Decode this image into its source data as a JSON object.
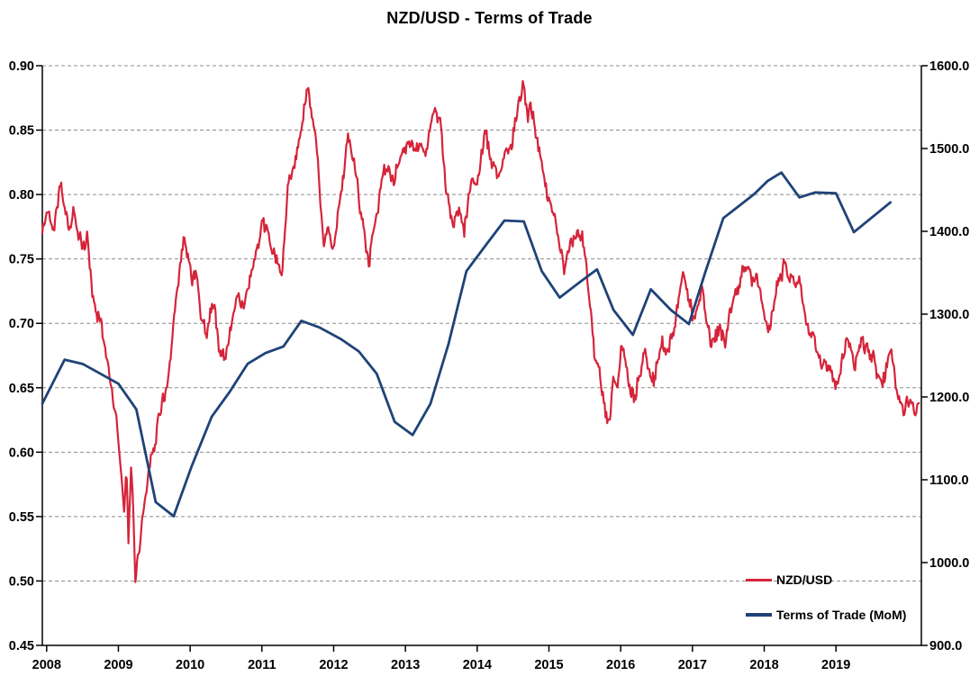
{
  "chart_data": {
    "type": "line",
    "title": "NZD/USD - Terms of Trade",
    "x_axis": {
      "min": 2007.94,
      "max": 2020.19,
      "tick_values": [
        2008,
        2009,
        2010,
        2011,
        2012,
        2013,
        2014,
        2015,
        2016,
        2017,
        2018,
        2019
      ],
      "tick_labels": [
        "2008",
        "2009",
        "2010",
        "2011",
        "2012",
        "2013",
        "2014",
        "2015",
        "2016",
        "2017",
        "2018",
        "2019"
      ]
    },
    "y_left": {
      "min": 0.45,
      "max": 0.9,
      "tick_values": [
        0.9,
        0.85,
        0.8,
        0.75,
        0.7,
        0.65,
        0.6,
        0.55,
        0.5,
        0.45
      ],
      "tick_labels": [
        "0.90",
        "0.85",
        "0.80",
        "0.75",
        "0.70",
        "0.65",
        "0.60",
        "0.55",
        "0.50",
        "0.45"
      ],
      "gridline_values": [
        0.9,
        0.85,
        0.8,
        0.75,
        0.7,
        0.65,
        0.6,
        0.55,
        0.5
      ]
    },
    "y_right": {
      "min": 900,
      "max": 1600,
      "tick_values": [
        1600,
        1500,
        1400,
        1300,
        1200,
        1100,
        1000,
        900
      ],
      "tick_labels": [
        "1600.0",
        "1500.0",
        "1400.0",
        "1300.0",
        "1200.0",
        "1100.0",
        "1000.0",
        "900.0"
      ]
    },
    "grid": {
      "style": "dashed",
      "color": "#8c8c8c"
    },
    "axis_color": "#000000",
    "legend": [
      {
        "label": "NZD/USD",
        "color": "#D5243A"
      },
      {
        "label": "Terms of Trade (MoM)",
        "color": "#1F4377"
      }
    ],
    "series": [
      {
        "name": "NZD/USD",
        "axis": "left",
        "color": "#D5243A",
        "line_width": 2.2,
        "render": "noisy",
        "points": [
          [
            2007.94,
            0.77
          ],
          [
            2008.02,
            0.788
          ],
          [
            2008.1,
            0.775
          ],
          [
            2008.19,
            0.818
          ],
          [
            2008.27,
            0.788
          ],
          [
            2008.32,
            0.77
          ],
          [
            2008.37,
            0.786
          ],
          [
            2008.45,
            0.768
          ],
          [
            2008.52,
            0.756
          ],
          [
            2008.57,
            0.764
          ],
          [
            2008.63,
            0.727
          ],
          [
            2008.7,
            0.704
          ],
          [
            2008.74,
            0.708
          ],
          [
            2008.8,
            0.69
          ],
          [
            2008.86,
            0.667
          ],
          [
            2008.91,
            0.652
          ],
          [
            2008.96,
            0.636
          ],
          [
            2009.01,
            0.6
          ],
          [
            2009.05,
            0.578
          ],
          [
            2009.08,
            0.545
          ],
          [
            2009.11,
            0.589
          ],
          [
            2009.14,
            0.522
          ],
          [
            2009.18,
            0.585
          ],
          [
            2009.24,
            0.497
          ],
          [
            2009.3,
            0.532
          ],
          [
            2009.37,
            0.566
          ],
          [
            2009.45,
            0.6
          ],
          [
            2009.53,
            0.622
          ],
          [
            2009.61,
            0.645
          ],
          [
            2009.7,
            0.657
          ],
          [
            2009.78,
            0.7
          ],
          [
            2009.86,
            0.742
          ],
          [
            2009.91,
            0.764
          ],
          [
            2009.97,
            0.748
          ],
          [
            2010.03,
            0.735
          ],
          [
            2010.08,
            0.745
          ],
          [
            2010.16,
            0.706
          ],
          [
            2010.24,
            0.7
          ],
          [
            2010.32,
            0.716
          ],
          [
            2010.41,
            0.68
          ],
          [
            2010.49,
            0.668
          ],
          [
            2010.57,
            0.696
          ],
          [
            2010.66,
            0.726
          ],
          [
            2010.74,
            0.706
          ],
          [
            2010.82,
            0.736
          ],
          [
            2010.91,
            0.756
          ],
          [
            2010.99,
            0.776
          ],
          [
            2011.07,
            0.766
          ],
          [
            2011.16,
            0.754
          ],
          [
            2011.28,
            0.733
          ],
          [
            2011.36,
            0.796
          ],
          [
            2011.45,
            0.822
          ],
          [
            2011.53,
            0.846
          ],
          [
            2011.64,
            0.879
          ],
          [
            2011.7,
            0.85
          ],
          [
            2011.77,
            0.822
          ],
          [
            2011.86,
            0.752
          ],
          [
            2011.93,
            0.78
          ],
          [
            2011.99,
            0.76
          ],
          [
            2012.11,
            0.8
          ],
          [
            2012.2,
            0.84
          ],
          [
            2012.28,
            0.824
          ],
          [
            2012.41,
            0.782
          ],
          [
            2012.49,
            0.75
          ],
          [
            2012.57,
            0.789
          ],
          [
            2012.7,
            0.817
          ],
          [
            2012.78,
            0.824
          ],
          [
            2012.86,
            0.813
          ],
          [
            2013.03,
            0.846
          ],
          [
            2013.16,
            0.834
          ],
          [
            2013.28,
            0.839
          ],
          [
            2013.41,
            0.864
          ],
          [
            2013.49,
            0.851
          ],
          [
            2013.57,
            0.806
          ],
          [
            2013.66,
            0.77
          ],
          [
            2013.74,
            0.781
          ],
          [
            2013.82,
            0.768
          ],
          [
            2013.91,
            0.808
          ],
          [
            2014.01,
            0.811
          ],
          [
            2014.11,
            0.849
          ],
          [
            2014.2,
            0.823
          ],
          [
            2014.3,
            0.809
          ],
          [
            2014.41,
            0.823
          ],
          [
            2014.53,
            0.858
          ],
          [
            2014.64,
            0.883
          ],
          [
            2014.7,
            0.859
          ],
          [
            2014.74,
            0.876
          ],
          [
            2014.84,
            0.843
          ],
          [
            2014.93,
            0.815
          ],
          [
            2015.01,
            0.796
          ],
          [
            2015.1,
            0.781
          ],
          [
            2015.21,
            0.747
          ],
          [
            2015.31,
            0.76
          ],
          [
            2015.46,
            0.768
          ],
          [
            2015.56,
            0.719
          ],
          [
            2015.63,
            0.684
          ],
          [
            2015.71,
            0.668
          ],
          [
            2015.79,
            0.638
          ],
          [
            2015.84,
            0.629
          ],
          [
            2015.9,
            0.662
          ],
          [
            2015.96,
            0.648
          ],
          [
            2016.02,
            0.683
          ],
          [
            2016.13,
            0.645
          ],
          [
            2016.19,
            0.638
          ],
          [
            2016.27,
            0.66
          ],
          [
            2016.33,
            0.678
          ],
          [
            2016.46,
            0.654
          ],
          [
            2016.58,
            0.689
          ],
          [
            2016.64,
            0.673
          ],
          [
            2016.75,
            0.7
          ],
          [
            2016.83,
            0.73
          ],
          [
            2016.87,
            0.742
          ],
          [
            2016.96,
            0.721
          ],
          [
            2017.02,
            0.702
          ],
          [
            2017.14,
            0.726
          ],
          [
            2017.26,
            0.691
          ],
          [
            2017.39,
            0.7
          ],
          [
            2017.45,
            0.684
          ],
          [
            2017.6,
            0.724
          ],
          [
            2017.75,
            0.752
          ],
          [
            2017.83,
            0.727
          ],
          [
            2017.89,
            0.736
          ],
          [
            2017.97,
            0.712
          ],
          [
            2018.05,
            0.687
          ],
          [
            2018.16,
            0.722
          ],
          [
            2018.27,
            0.74
          ],
          [
            2018.39,
            0.732
          ],
          [
            2018.48,
            0.738
          ],
          [
            2018.56,
            0.712
          ],
          [
            2018.65,
            0.7
          ],
          [
            2018.77,
            0.681
          ],
          [
            2018.84,
            0.671
          ],
          [
            2018.89,
            0.664
          ],
          [
            2018.96,
            0.657
          ],
          [
            2019.01,
            0.648
          ],
          [
            2019.11,
            0.685
          ],
          [
            2019.19,
            0.691
          ],
          [
            2019.26,
            0.671
          ],
          [
            2019.35,
            0.686
          ],
          [
            2019.46,
            0.682
          ],
          [
            2019.56,
            0.67
          ],
          [
            2019.63,
            0.653
          ],
          [
            2019.7,
            0.665
          ],
          [
            2019.76,
            0.677
          ],
          [
            2019.86,
            0.634
          ],
          [
            2019.94,
            0.626
          ],
          [
            2020.05,
            0.64
          ],
          [
            2020.16,
            0.641
          ]
        ]
      },
      {
        "name": "Terms of Trade (MoM)",
        "axis": "right",
        "color": "#1F4377",
        "line_width": 2.8,
        "render": "linear",
        "points": [
          [
            2007.94,
            1192
          ],
          [
            2008.25,
            1245
          ],
          [
            2008.5,
            1240
          ],
          [
            2008.75,
            1228
          ],
          [
            2009.0,
            1216
          ],
          [
            2009.25,
            1185
          ],
          [
            2009.52,
            1073
          ],
          [
            2009.77,
            1056
          ],
          [
            2010.02,
            1116
          ],
          [
            2010.3,
            1176
          ],
          [
            2010.55,
            1206
          ],
          [
            2010.8,
            1240
          ],
          [
            2011.05,
            1253
          ],
          [
            2011.3,
            1261
          ],
          [
            2011.55,
            1292
          ],
          [
            2011.8,
            1284
          ],
          [
            2012.1,
            1270
          ],
          [
            2012.35,
            1255
          ],
          [
            2012.6,
            1228
          ],
          [
            2012.85,
            1170
          ],
          [
            2013.1,
            1154
          ],
          [
            2013.35,
            1192
          ],
          [
            2013.6,
            1264
          ],
          [
            2013.85,
            1352
          ],
          [
            2014.1,
            1381
          ],
          [
            2014.38,
            1413
          ],
          [
            2014.65,
            1412
          ],
          [
            2014.9,
            1352
          ],
          [
            2015.15,
            1320
          ],
          [
            2015.42,
            1338
          ],
          [
            2015.67,
            1354
          ],
          [
            2015.9,
            1305
          ],
          [
            2016.17,
            1275
          ],
          [
            2016.42,
            1330
          ],
          [
            2016.7,
            1305
          ],
          [
            2016.95,
            1288
          ],
          [
            2017.18,
            1351
          ],
          [
            2017.43,
            1416
          ],
          [
            2017.64,
            1430
          ],
          [
            2017.86,
            1445
          ],
          [
            2018.05,
            1461
          ],
          [
            2018.24,
            1471
          ],
          [
            2018.49,
            1441
          ],
          [
            2018.71,
            1447
          ],
          [
            2019.0,
            1446
          ],
          [
            2019.25,
            1399
          ],
          [
            2019.76,
            1435
          ]
        ]
      }
    ]
  }
}
